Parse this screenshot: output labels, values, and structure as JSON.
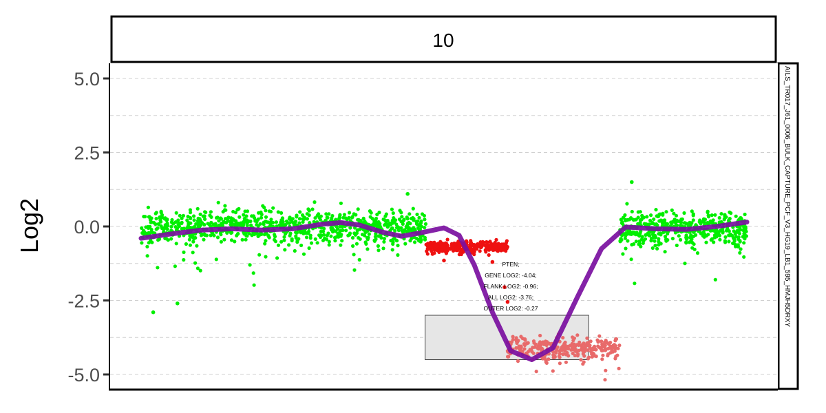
{
  "chart_data": {
    "type": "scatter",
    "panel_title": "10",
    "ylabel": "Log2",
    "ylim": [
      -5.4,
      5.0
    ],
    "y_ticks": [
      {
        "value": 5.0,
        "label": "5.0"
      },
      {
        "value": 2.5,
        "label": "2.5"
      },
      {
        "value": 0.0,
        "label": "0.0"
      },
      {
        "value": -2.5,
        "label": "-2.5"
      },
      {
        "value": -5.0,
        "label": "-5.0"
      }
    ],
    "sample_label": "AILS_TR017_J61_0006_BULK_CAPTURE_PCF_V3_HG19_LB1_595_HMJH5DRXY",
    "grid": true,
    "series": [
      {
        "color": "#00ee00",
        "kind": "points",
        "segments": [
          {
            "x_start": 0.0,
            "x_end": 0.47,
            "mean": 0.0,
            "spread": 0.4,
            "count": 850
          },
          {
            "x_start": 0.79,
            "x_end": 1.0,
            "mean": -0.05,
            "spread": 0.4,
            "count": 450
          }
        ],
        "outliers": [
          {
            "x": 0.02,
            "y": -2.9
          },
          {
            "x": 0.06,
            "y": -2.6
          },
          {
            "x": 0.81,
            "y": 1.5
          },
          {
            "x": 0.44,
            "y": 1.1
          }
        ]
      },
      {
        "color": "#ee1111",
        "kind": "points",
        "segments": [
          {
            "x_start": 0.47,
            "x_end": 0.605,
            "mean": -0.68,
            "spread": 0.12,
            "count": 320
          }
        ],
        "outliers": [
          {
            "x": 0.605,
            "y": -2.55
          },
          {
            "x": 0.6,
            "y": -2.05
          },
          {
            "x": 0.58,
            "y": -1.2
          },
          {
            "x": 0.5,
            "y": -1.15
          }
        ]
      },
      {
        "color": "#e86a6a",
        "kind": "points",
        "segments": [
          {
            "x_start": 0.605,
            "x_end": 0.79,
            "mean": -4.1,
            "spread": 0.28,
            "count": 300
          }
        ]
      }
    ],
    "smooth_line": {
      "color": "#7a0fa0",
      "points": [
        [
          0.0,
          -0.4
        ],
        [
          0.05,
          -0.25
        ],
        [
          0.1,
          -0.12
        ],
        [
          0.15,
          -0.08
        ],
        [
          0.2,
          -0.12
        ],
        [
          0.25,
          -0.08
        ],
        [
          0.3,
          0.08
        ],
        [
          0.33,
          0.13
        ],
        [
          0.36,
          0.05
        ],
        [
          0.4,
          -0.2
        ],
        [
          0.43,
          -0.33
        ],
        [
          0.46,
          -0.22
        ],
        [
          0.5,
          -0.05
        ],
        [
          0.525,
          -0.3
        ],
        [
          0.55,
          -1.3
        ],
        [
          0.58,
          -2.9
        ],
        [
          0.61,
          -4.2
        ],
        [
          0.645,
          -4.5
        ],
        [
          0.68,
          -4.1
        ],
        [
          0.72,
          -2.4
        ],
        [
          0.76,
          -0.75
        ],
        [
          0.8,
          -0.02
        ],
        [
          0.85,
          -0.08
        ],
        [
          0.9,
          -0.1
        ],
        [
          0.95,
          0.0
        ],
        [
          1.0,
          0.15
        ]
      ]
    },
    "highlight_box": {
      "x_start": 0.47,
      "x_end": 0.74,
      "y_top": -3.0,
      "y_bottom": -4.5
    },
    "annotation": [
      "PTEN;",
      "GENE LOG2: -4.04;",
      "FLANK LOG2: -0.96;",
      "ALL LOG2: -3.76;",
      "OUTER LOG2: -0.27"
    ]
  }
}
